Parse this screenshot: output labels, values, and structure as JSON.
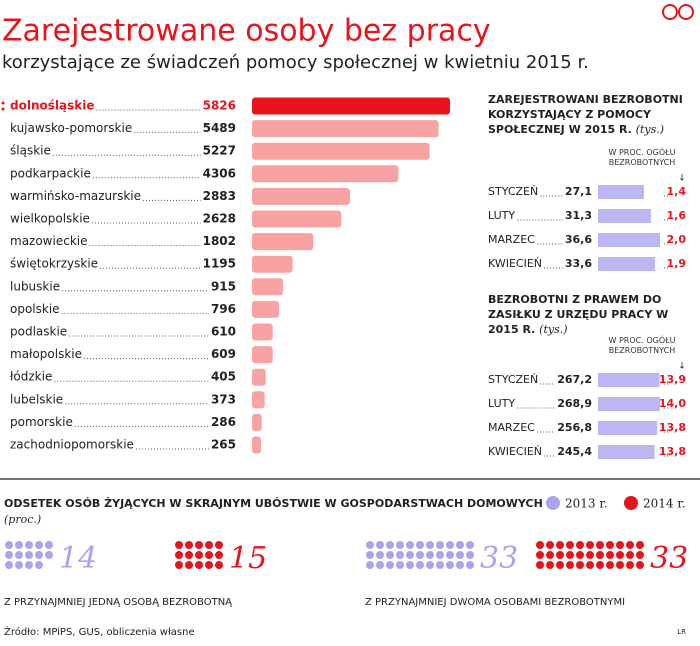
{
  "title": "Zarejestrowane osoby bez pracy",
  "subtitle": "korzystające ze świadczeń pomocy społecznej w kwietniu 2015 r.",
  "chart_data": [
    {
      "type": "hbar",
      "categories": [
        "dolnośląskie",
        "kujawsko-pomorskie",
        "śląskie",
        "podkarpackie",
        "warmińsko-mazurskie",
        "wielkopolskie",
        "mazowieckie",
        "świętokrzyskie",
        "lubuskie",
        "opolskie",
        "podlaskie",
        "małopolskie",
        "łódzkie",
        "lubelskie",
        "pomorskie",
        "zachodniopomorskie"
      ],
      "values": [
        5826,
        5489,
        5227,
        4306,
        2883,
        2628,
        1802,
        1195,
        915,
        796,
        610,
        609,
        405,
        373,
        286,
        265
      ],
      "colors": [
        "#e8141c",
        "#f7a3a3",
        "#f7a3a3",
        "#f7a3a3",
        "#f7a3a3",
        "#f7a3a3",
        "#f7a3a3",
        "#f7a3a3",
        "#f7a3a3",
        "#f7a3a3",
        "#f7a3a3",
        "#f7a3a3",
        "#f7a3a3",
        "#f7a3a3",
        "#f7a3a3",
        "#f7a3a3"
      ]
    },
    {
      "type": "panel",
      "title": "ZAREJESTROWANI BEZROBOTNI KORZYSTAJĄCY Z POMOCY SPOŁECZNEJ W 2015 R.",
      "unit": "(tys.)",
      "share_title": "W PROC. OGÓŁU BEZROBOTNYCH",
      "categories": [
        "STYCZEŃ",
        "LUTY",
        "MARZEC",
        "KWIECIEŃ"
      ],
      "values": [
        27.1,
        31.3,
        36.6,
        33.6
      ],
      "value_labels": [
        "27,1",
        "31,3",
        "36,6",
        "33,6"
      ],
      "color": "#bab7f2",
      "share_values": [
        1.4,
        1.6,
        2.0,
        1.9
      ],
      "share_labels": [
        "1,4",
        "1,6",
        "2,0",
        "1,9"
      ],
      "share_color": "#e8141c"
    },
    {
      "type": "panel",
      "title": "BEZROBOTNI Z PRAWEM DO ZASIŁKU Z URZĘDU PRACY W 2015 R.",
      "unit": "(tys.)",
      "share_title": "W PROC. OGÓŁU BEZROBOTNYCH",
      "categories": [
        "STYCZEŃ",
        "LUTY",
        "MARZEC",
        "KWIECIEŃ"
      ],
      "values": [
        267.2,
        268.9,
        256.8,
        245.4
      ],
      "value_labels": [
        "267,2",
        "268,9",
        "256,8",
        "245,4"
      ],
      "color": "#bab7f2",
      "share_values": [
        13.9,
        14.0,
        13.8,
        13.8
      ],
      "share_labels": [
        "13,9",
        "14,0",
        "13,8",
        "13,8"
      ],
      "share_color": "#e8141c"
    },
    {
      "type": "dots",
      "title": "ODSETEK OSÓB ŻYJĄCYCH W SKRAJNYM UBÓSTWIE W GOSPODARSTWACH DOMOWYCH",
      "unit": "(proc.)",
      "categories": [
        "Z PRZYNAJMNIEJ JEDNĄ OSOBĄ BEZROBOTNĄ",
        "Z PRZYNAJMNIEJ DWOMA OSOBAMI BEZROBOTNYMI"
      ],
      "series": [
        {
          "name": "2013 r.",
          "color": "#a9a4ee",
          "values": [
            14,
            33
          ]
        },
        {
          "name": "2014 r.",
          "color": "#e8141c",
          "values": [
            15,
            33
          ]
        }
      ]
    }
  ],
  "source": "Źródło: MPiPS, GUS, obliczenia własne",
  "credit": "LR"
}
